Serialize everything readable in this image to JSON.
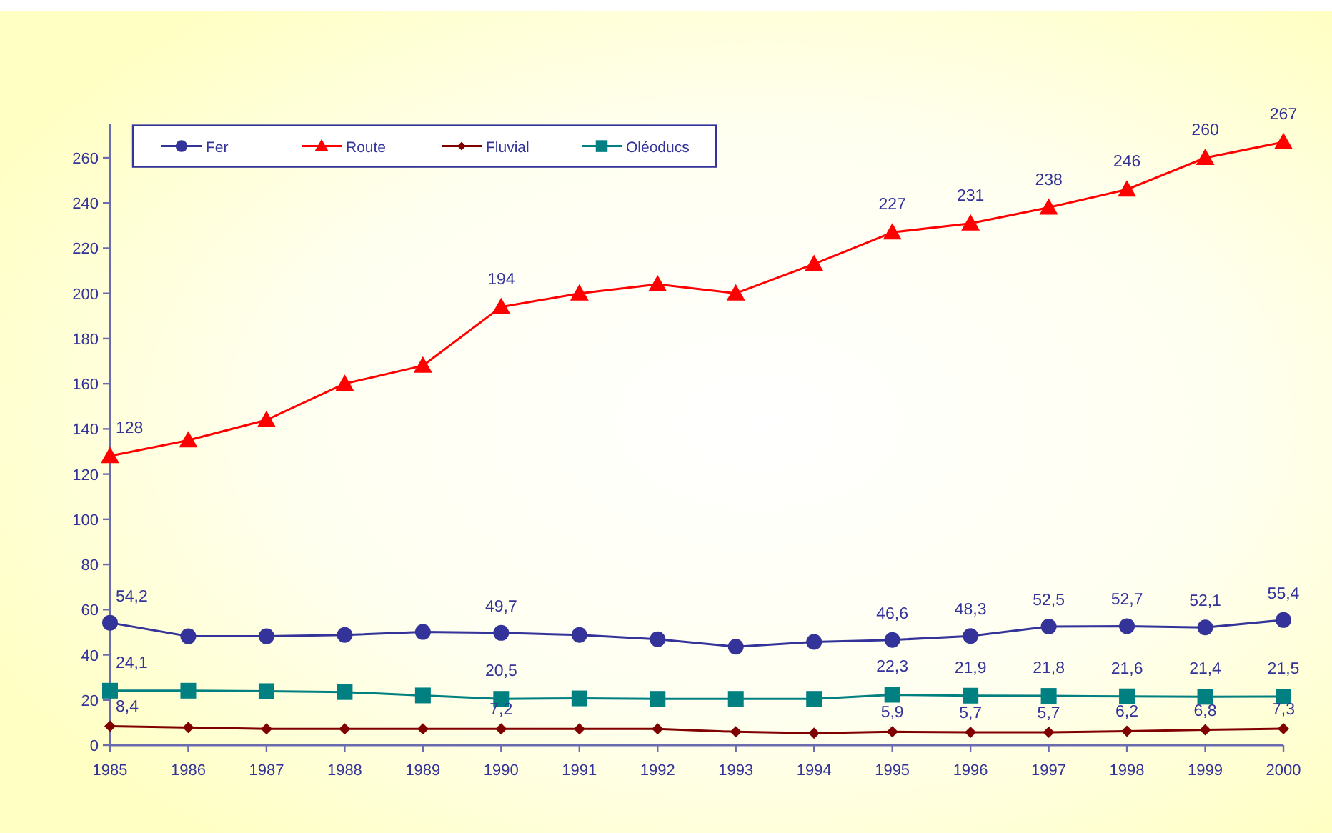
{
  "chart_data": {
    "type": "line",
    "categories": [
      "1985",
      "1986",
      "1987",
      "1988",
      "1989",
      "1990",
      "1991",
      "1992",
      "1993",
      "1994",
      "1995",
      "1996",
      "1997",
      "1998",
      "1999",
      "2000"
    ],
    "ylim": [
      0,
      275
    ],
    "yticks": [
      0,
      20,
      40,
      60,
      80,
      100,
      120,
      140,
      160,
      180,
      200,
      220,
      240,
      260
    ],
    "grid": false,
    "legend": "top left",
    "series": [
      {
        "name": "Fer",
        "color": "#333399",
        "marker": "circle",
        "values": [
          54.2,
          48.2,
          48.2,
          48.8,
          50.1,
          49.7,
          48.8,
          46.9,
          43.6,
          45.7,
          46.6,
          48.3,
          52.5,
          52.7,
          52.1,
          55.4
        ],
        "value_labels": [
          "54,2",
          null,
          null,
          null,
          null,
          "49,7",
          null,
          null,
          null,
          null,
          "46,6",
          "48,3",
          "52,5",
          "52,7",
          "52,1",
          "55,4"
        ]
      },
      {
        "name": "Route",
        "color": "#ff0000",
        "marker": "triangle",
        "values": [
          128,
          135,
          144,
          160,
          168,
          194,
          200,
          204,
          200,
          213,
          227,
          231,
          238,
          246,
          260,
          267
        ],
        "value_labels": [
          "128",
          null,
          null,
          null,
          null,
          "194",
          null,
          null,
          null,
          null,
          "227",
          "231",
          "238",
          "246",
          "260",
          "267"
        ]
      },
      {
        "name": "Fluvial",
        "color": "#800000",
        "marker": "diamond",
        "values": [
          8.4,
          7.8,
          7.2,
          7.2,
          7.2,
          7.2,
          7.2,
          7.2,
          5.9,
          5.3,
          5.9,
          5.7,
          5.7,
          6.2,
          6.8,
          7.3
        ],
        "value_labels": [
          "8,4",
          null,
          null,
          null,
          null,
          "7,2",
          null,
          null,
          null,
          null,
          "5,9",
          "5,7",
          "5,7",
          "6,2",
          "6,8",
          "7,3"
        ]
      },
      {
        "name": "Oléoducs",
        "color": "#008080",
        "marker": "square",
        "values": [
          24.1,
          24.1,
          23.9,
          23.5,
          22.0,
          20.5,
          20.7,
          20.5,
          20.5,
          20.5,
          22.3,
          21.9,
          21.8,
          21.6,
          21.4,
          21.5
        ],
        "value_labels": [
          "24,1",
          null,
          null,
          null,
          null,
          "20,5",
          null,
          null,
          null,
          null,
          "22,3",
          "21,9",
          "21,8",
          "21,6",
          "21,4",
          "21,5"
        ]
      }
    ]
  }
}
